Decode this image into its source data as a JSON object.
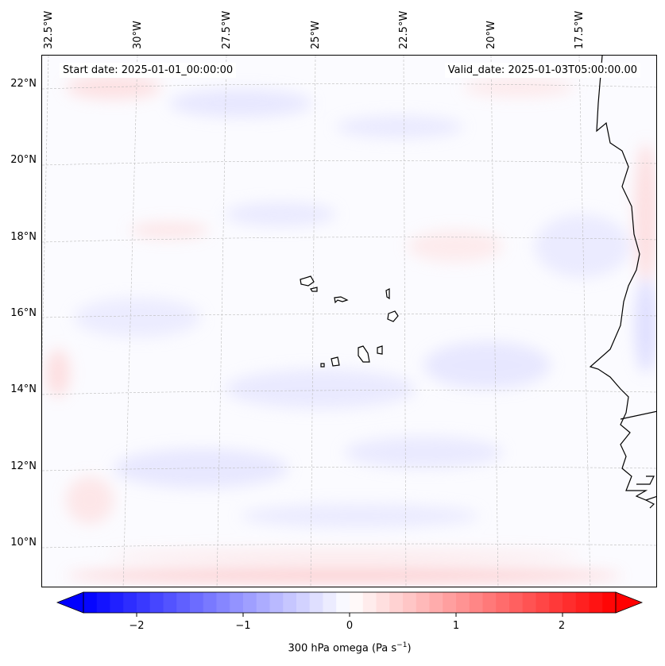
{
  "map": {
    "start_date": "Start date: 2025-01-01_00:00:00",
    "valid_date": "Valid_date: 2025-01-03T05:00:00.00",
    "lon_labels": [
      "32.5°W",
      "30°W",
      "27.5°W",
      "25°W",
      "22.5°W",
      "20°W",
      "17.5°W"
    ],
    "lat_labels": [
      "22°N",
      "20°N",
      "18°N",
      "16°N",
      "14°N",
      "12°N",
      "10°N"
    ]
  },
  "colorbar": {
    "label_main": "300 hPa omega (Pa s",
    "label_sup": "−1",
    "label_end": ")",
    "ticks": [
      "−2",
      "−1",
      "0",
      "1",
      "2"
    ],
    "tick_values": [
      -2,
      -1,
      0,
      1,
      2
    ],
    "range": [
      -2.5,
      2.5
    ],
    "extend": "both",
    "colormap": "bwr",
    "colors": {
      "low": "#0000ff",
      "mid": "#ffffff",
      "high": "#ff0000"
    }
  }
}
